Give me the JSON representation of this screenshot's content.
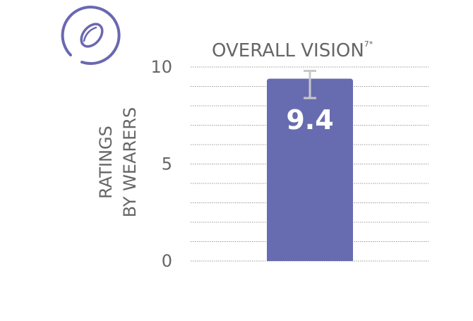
{
  "chart_data": {
    "type": "bar",
    "title": "OVERALL VISION",
    "title_superscript": "7*",
    "ylabel_lines": [
      "RATINGS",
      "BY WEARERS"
    ],
    "xlabel": "",
    "categories": [
      ""
    ],
    "values": [
      9.4
    ],
    "data_labels": [
      "9.4"
    ],
    "error_bars": [
      {
        "low": 8.4,
        "high": 9.8
      }
    ],
    "ylim": [
      0,
      10
    ],
    "yticks": [
      0,
      5,
      10
    ],
    "yticks_labels": [
      "0",
      "5",
      "10"
    ],
    "grid": true,
    "grid_step": 1,
    "legend": "none",
    "colors": {
      "bar": "#676cb0",
      "error_bar": "#c8c8c8",
      "grid": "#9a9a9a",
      "text": "#666666",
      "icon": "#6a68b0"
    }
  },
  "icon": {
    "name": "contact-lens-icon"
  }
}
